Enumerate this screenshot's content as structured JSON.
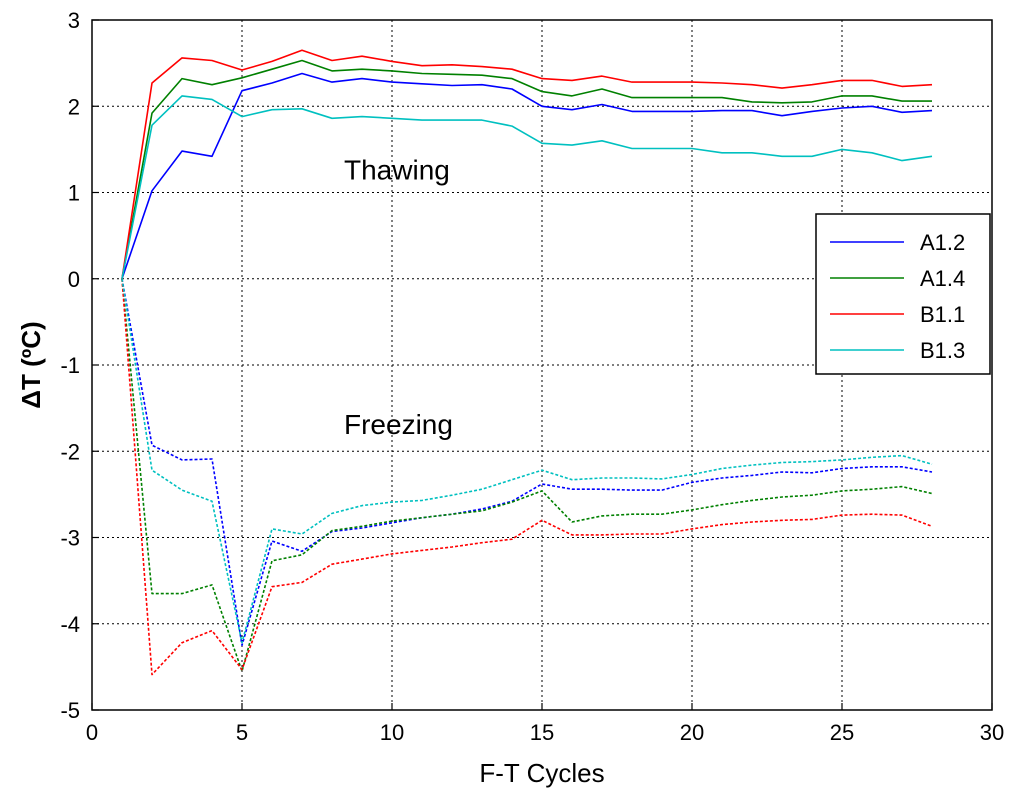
{
  "chart_data": {
    "type": "line",
    "title": "",
    "xlabel": "F-T Cycles",
    "ylabel": "ΔT (ºC)",
    "xlim": [
      0,
      30
    ],
    "ylim": [
      -5,
      3
    ],
    "xticks": [
      0,
      5,
      10,
      15,
      20,
      25,
      30
    ],
    "yticks": [
      -5,
      -4,
      -3,
      -2,
      -1,
      0,
      1,
      2,
      3
    ],
    "grid": "dotted, major ticks",
    "legend_position": "right",
    "annotations": [
      {
        "text": "Thawing",
        "x": 8.4,
        "y": 1.15
      },
      {
        "text": "Freezing",
        "x": 8.4,
        "y": -1.8
      }
    ],
    "x": [
      1,
      2,
      3,
      4,
      5,
      6,
      7,
      8,
      9,
      10,
      11,
      12,
      13,
      14,
      15,
      16,
      17,
      18,
      19,
      20,
      21,
      22,
      23,
      24,
      25,
      26,
      27,
      28
    ],
    "series": [
      {
        "name": "A1.2",
        "color": "#0000ff",
        "group": "Thawing",
        "style": "solid",
        "values": [
          0,
          1.02,
          1.48,
          1.42,
          2.18,
          2.27,
          2.38,
          2.28,
          2.32,
          2.28,
          2.26,
          2.24,
          2.25,
          2.2,
          2.0,
          1.96,
          2.02,
          1.94,
          1.94,
          1.94,
          1.95,
          1.95,
          1.89,
          1.94,
          1.98,
          2.0,
          1.93,
          1.95
        ]
      },
      {
        "name": "A1.4",
        "color": "#008000",
        "group": "Thawing",
        "style": "solid",
        "values": [
          0,
          1.92,
          2.32,
          2.25,
          2.33,
          2.43,
          2.53,
          2.41,
          2.43,
          2.41,
          2.38,
          2.37,
          2.36,
          2.32,
          2.17,
          2.12,
          2.2,
          2.1,
          2.1,
          2.1,
          2.1,
          2.05,
          2.04,
          2.05,
          2.12,
          2.12,
          2.06,
          2.06
        ]
      },
      {
        "name": "B1.1",
        "color": "#ff0000",
        "group": "Thawing",
        "style": "solid",
        "values": [
          0,
          2.27,
          2.56,
          2.53,
          2.42,
          2.52,
          2.65,
          2.53,
          2.58,
          2.52,
          2.47,
          2.48,
          2.46,
          2.43,
          2.32,
          2.3,
          2.35,
          2.28,
          2.28,
          2.28,
          2.27,
          2.25,
          2.21,
          2.25,
          2.3,
          2.3,
          2.23,
          2.25
        ]
      },
      {
        "name": "B1.3",
        "color": "#00c0c0",
        "group": "Thawing",
        "style": "solid",
        "values": [
          0,
          1.78,
          2.12,
          2.08,
          1.88,
          1.96,
          1.97,
          1.86,
          1.88,
          1.86,
          1.84,
          1.84,
          1.84,
          1.77,
          1.57,
          1.55,
          1.6,
          1.51,
          1.51,
          1.51,
          1.46,
          1.46,
          1.42,
          1.42,
          1.5,
          1.46,
          1.37,
          1.42
        ]
      },
      {
        "name": "A1.2",
        "color": "#0000ff",
        "group": "Freezing",
        "style": "dashed",
        "values": [
          0,
          -1.93,
          -2.1,
          -2.09,
          -4.25,
          -3.04,
          -3.16,
          -2.93,
          -2.89,
          -2.83,
          -2.77,
          -2.73,
          -2.67,
          -2.58,
          -2.38,
          -2.44,
          -2.44,
          -2.45,
          -2.45,
          -2.36,
          -2.31,
          -2.28,
          -2.24,
          -2.25,
          -2.2,
          -2.18,
          -2.18,
          -2.24
        ]
      },
      {
        "name": "A1.4",
        "color": "#008000",
        "group": "Freezing",
        "style": "dashed",
        "values": [
          0,
          -3.65,
          -3.65,
          -3.55,
          -4.55,
          -3.27,
          -3.2,
          -2.92,
          -2.87,
          -2.81,
          -2.77,
          -2.73,
          -2.69,
          -2.59,
          -2.46,
          -2.82,
          -2.75,
          -2.73,
          -2.73,
          -2.68,
          -2.62,
          -2.57,
          -2.53,
          -2.51,
          -2.46,
          -2.44,
          -2.41,
          -2.49
        ]
      },
      {
        "name": "B1.1",
        "color": "#ff0000",
        "group": "Freezing",
        "style": "dashed",
        "values": [
          0,
          -4.59,
          -4.22,
          -4.08,
          -4.53,
          -3.57,
          -3.52,
          -3.31,
          -3.25,
          -3.19,
          -3.15,
          -3.11,
          -3.06,
          -3.02,
          -2.8,
          -2.97,
          -2.97,
          -2.96,
          -2.96,
          -2.9,
          -2.85,
          -2.82,
          -2.8,
          -2.79,
          -2.74,
          -2.73,
          -2.74,
          -2.87
        ]
      },
      {
        "name": "B1.3",
        "color": "#00c0c0",
        "group": "Freezing",
        "style": "dashed",
        "values": [
          0,
          -2.22,
          -2.45,
          -2.58,
          -4.22,
          -2.9,
          -2.96,
          -2.72,
          -2.63,
          -2.59,
          -2.57,
          -2.51,
          -2.44,
          -2.33,
          -2.22,
          -2.33,
          -2.31,
          -2.31,
          -2.32,
          -2.27,
          -2.2,
          -2.16,
          -2.13,
          -2.12,
          -2.1,
          -2.07,
          -2.05,
          -2.15
        ]
      }
    ],
    "legend": [
      "A1.2",
      "A1.4",
      "B1.1",
      "B1.3"
    ]
  }
}
